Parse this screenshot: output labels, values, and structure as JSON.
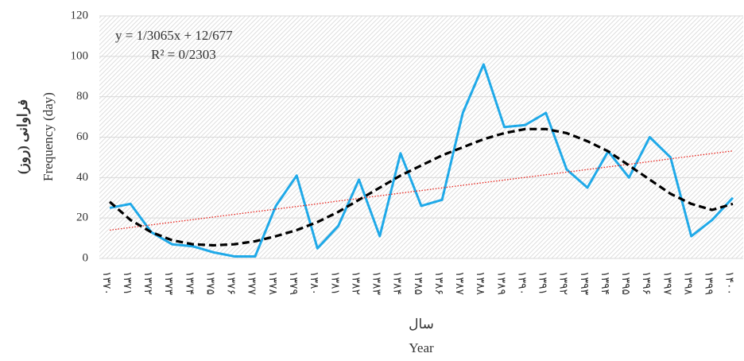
{
  "chart_data": {
    "type": "line",
    "y_axis_label": [
      "فراوانی (روز)",
      "Frequency (day)"
    ],
    "x_axis_label": [
      "سال",
      "Year"
    ],
    "annotations": [
      "y = 1/3065x + 12/677",
      "R² = 0/2303"
    ],
    "categories": [
      "۱۳۷۰",
      "۱۳۷۱",
      "۱۳۷۲",
      "۱۳۷۳",
      "۱۳۷۴",
      "۱۳۷۵",
      "۱۳۷۶",
      "۱۳۷۷",
      "۱۳۷۸",
      "۱۳۷۹",
      "۱۳۸۰",
      "۱۳۸۱",
      "۱۳۸۲",
      "۱۳۸۳",
      "۱۳۸۴",
      "۱۳۸۵",
      "۱۳۸۶",
      "۱۳۸۷",
      "۱۳۸۸",
      "۱۳۸۹",
      "۱۳۹۰",
      "۱۳۹۱",
      "۱۳۹۲",
      "۱۳۹۳",
      "۱۳۹۴",
      "۱۳۹۵",
      "۱۳۹۶",
      "۱۳۹۷",
      "۱۳۹۸",
      "۱۳۹۹",
      "۱۴۰۰"
    ],
    "series": [
      {
        "color": "#1fa9e8",
        "style": "solid",
        "values": [
          25,
          27,
          13,
          7,
          6,
          3,
          1,
          1,
          26,
          41,
          5,
          16,
          39,
          11,
          52,
          26,
          29,
          72,
          96,
          65,
          66,
          72,
          44,
          35,
          53,
          40,
          60,
          50,
          11,
          19,
          30
        ]
      },
      {
        "color": "#e8231c",
        "style": "dotted",
        "values": [
          14.0,
          15.3,
          16.6,
          17.9,
          19.2,
          20.5,
          21.8,
          23.1,
          24.4,
          25.7,
          27.0,
          28.4,
          29.7,
          31.0,
          32.3,
          33.6,
          34.9,
          36.2,
          37.5,
          38.8,
          40.1,
          41.4,
          42.7,
          44.0,
          45.3,
          46.6,
          47.9,
          49.3,
          50.6,
          51.9,
          53.2
        ]
      },
      {
        "color": "#000000",
        "style": "dashed",
        "values": [
          28,
          19,
          13,
          9,
          7,
          6.5,
          7,
          8.5,
          11,
          14,
          18,
          23,
          29,
          35,
          41,
          46,
          51,
          55,
          59,
          62,
          64,
          64,
          62,
          58,
          53,
          46,
          39,
          32,
          27,
          24,
          27
        ]
      }
    ],
    "ylim": [
      0,
      120
    ],
    "yticks": [
      0,
      20,
      40,
      60,
      80,
      100,
      120
    ],
    "grid": true
  }
}
